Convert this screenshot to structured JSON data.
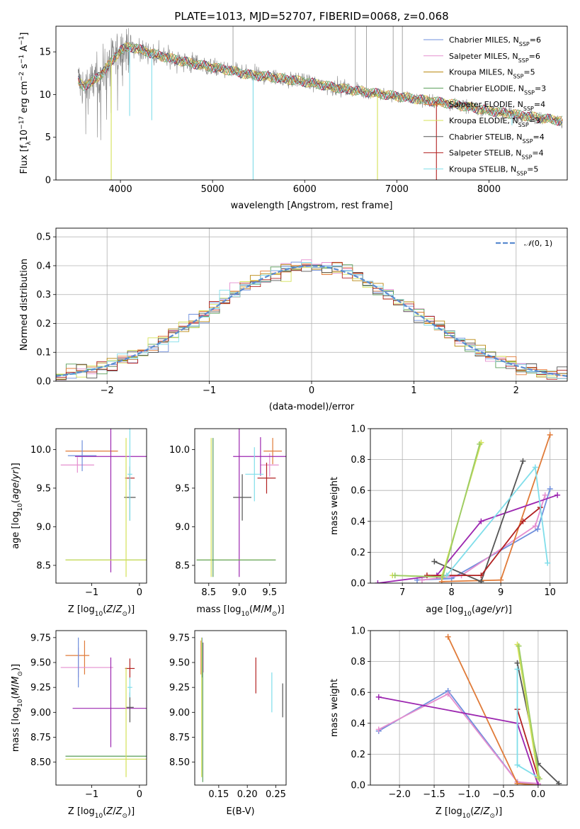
{
  "chart_data": [
    {
      "id": "spectrum",
      "type": "line",
      "title": "PLATE=1013, MJD=52707, FIBERID=0068, z=0.068",
      "xlabel": "wavelength [Angstrom, rest frame]",
      "ylabel": "Flux [fλ10⁻¹⁷ erg cm⁻² s⁻¹ A⁻¹]",
      "xlim": [
        3300,
        8850
      ],
      "ylim": [
        0,
        18
      ],
      "xticks": [
        4000,
        5000,
        6000,
        7000,
        8000
      ],
      "yticks": [
        0,
        5,
        10,
        15
      ],
      "data_color": "#808080",
      "continuum": {
        "x": [
          3540,
          3600,
          3700,
          3800,
          3900,
          4000,
          4100,
          4200,
          4400,
          4600,
          4800,
          5000,
          5200,
          5400,
          5600,
          5800,
          6000,
          6200,
          6400,
          6600,
          6800,
          7000,
          7200,
          7400,
          7600,
          7800,
          8000,
          8200,
          8400,
          8600,
          8800
        ],
        "y": [
          11.6,
          11.0,
          11.5,
          12.5,
          13.8,
          15.2,
          15.6,
          15.3,
          14.6,
          14.1,
          13.6,
          13.2,
          12.8,
          12.3,
          12.1,
          11.8,
          11.5,
          11.1,
          10.7,
          10.4,
          10.1,
          9.8,
          9.5,
          9.2,
          8.9,
          8.5,
          8.1,
          7.8,
          7.5,
          7.2,
          6.9
        ]
      },
      "legend": [
        {
          "label": "Chabrier MILES, N",
          "sub": "SSP",
          "suffix": "=6",
          "color": "#6f8fdc"
        },
        {
          "label": "Salpeter MILES, N",
          "sub": "SSP",
          "suffix": "=6",
          "color": "#e58fcf"
        },
        {
          "label": "Kroupa MILES, N",
          "sub": "SSP",
          "suffix": "=5",
          "color": "#b8860b"
        },
        {
          "label": "Chabrier ELODIE, N",
          "sub": "SSP",
          "suffix": "=3",
          "color": "#5a9e5a"
        },
        {
          "label": "Salpeter ELODIE, N",
          "sub": "SSP",
          "suffix": "=4",
          "color": "#e07b39"
        },
        {
          "label": "Kroupa ELODIE, N",
          "sub": "SSP",
          "suffix": "=3",
          "color": "#d4e157"
        },
        {
          "label": "Chabrier STELIB, N",
          "sub": "SSP",
          "suffix": "=4",
          "color": "#555555"
        },
        {
          "label": "Salpeter STELIB, N",
          "sub": "SSP",
          "suffix": "=4",
          "color": "#b22222"
        },
        {
          "label": "Kroupa STELIB, N",
          "sub": "SSP",
          "suffix": "=5",
          "color": "#80deea"
        }
      ]
    },
    {
      "id": "histogram",
      "type": "bar",
      "xlabel": "(data-model)/error",
      "ylabel": "Normed distribution",
      "xlim": [
        -2.5,
        2.5
      ],
      "ylim": [
        0,
        0.53
      ],
      "xticks": [
        -2,
        -1,
        0,
        1,
        2
      ],
      "yticks": [
        0.0,
        0.1,
        0.2,
        0.3,
        0.4,
        0.5
      ],
      "grid": true,
      "legend": "N(0,1)",
      "legend_position": "top-right",
      "gaussian_color": "#5b8bd0",
      "bin_width": 0.1,
      "series_colors": [
        "#6f8fdc",
        "#e58fcf",
        "#b8860b",
        "#5a9e5a",
        "#e07b39",
        "#d4e157",
        "#555555",
        "#b22222",
        "#80deea"
      ]
    },
    {
      "id": "age-vs-Z",
      "type": "scatter",
      "xlabel": "Z [log10(Z/Z⊙)]",
      "ylabel": "age  [log10(age/yr)]",
      "xlim": [
        -1.75,
        0.15
      ],
      "ylim": [
        8.27,
        10.27
      ],
      "xticks": [
        -1,
        0
      ],
      "yticks": [
        8.5,
        9.0,
        9.5,
        10.0
      ],
      "errorbars": [
        {
          "x": -1.0,
          "xerr": 0.55,
          "y": 9.98,
          "yerr": 0.0,
          "color": "#e07b39"
        },
        {
          "x": -1.3,
          "xerr": 0.35,
          "y": 9.8,
          "yerr": 0.1,
          "color": "#e58fcf"
        },
        {
          "x": -1.2,
          "xerr": 0.3,
          "y": 9.92,
          "yerr": 0.2,
          "color": "#6f8fdc"
        },
        {
          "x": -0.6,
          "xerr": 0.75,
          "y": 9.91,
          "yerr": 1.5,
          "color": "#9c27b0"
        },
        {
          "x": -0.2,
          "xerr": 0.1,
          "y": 9.63,
          "yerr": 0.15,
          "color": "#b22222"
        },
        {
          "x": -0.2,
          "xerr": 0.12,
          "y": 9.38,
          "yerr": 0.3,
          "color": "#555555"
        },
        {
          "x": -0.2,
          "xerr": 0.05,
          "y": 9.68,
          "yerr": 0.6,
          "color": "#80deea"
        },
        {
          "x": -0.25,
          "xerr": 1.3,
          "y": 8.57,
          "yerr": 0.0,
          "color": "#5a9e5a"
        },
        {
          "x": -0.25,
          "xerr": 1.3,
          "y": 8.57,
          "yerr": 0.0,
          "color": "#d4e157"
        },
        {
          "x": -0.28,
          "xerr": 0.0,
          "y": 9.25,
          "yerr": 0.9,
          "color": "#d4e157"
        }
      ]
    },
    {
      "id": "age-vs-mass",
      "type": "scatter",
      "xlabel": "mass [log10(M/M⊙)]",
      "ylabel": "",
      "xlim": [
        8.27,
        9.77
      ],
      "ylim": [
        8.27,
        10.27
      ],
      "xticks": [
        8.5,
        9.0,
        9.5
      ],
      "yticks": [
        8.5,
        9.0,
        9.5,
        10.0
      ],
      "errorbars": [
        {
          "x": 9.55,
          "xerr": 0.15,
          "y": 9.98,
          "yerr": 0.17,
          "color": "#e07b39"
        },
        {
          "x": 9.5,
          "xerr": 0.15,
          "y": 9.8,
          "yerr": 0.15,
          "color": "#e58fcf"
        },
        {
          "x": 9.35,
          "xerr": 0.45,
          "y": 9.91,
          "yerr": 0.25,
          "color": "#9c27b0"
        },
        {
          "x": 9.25,
          "xerr": 0.15,
          "y": 9.68,
          "yerr": 0.35,
          "color": "#80deea"
        },
        {
          "x": 9.45,
          "xerr": 0.15,
          "y": 9.63,
          "yerr": 0.2,
          "color": "#b22222"
        },
        {
          "x": 9.05,
          "xerr": 0.15,
          "y": 9.38,
          "yerr": 0.3,
          "color": "#555555"
        },
        {
          "x": 9.0,
          "xerr": 0.0,
          "y": 9.35,
          "yerr": 1.0,
          "color": "#9c27b0"
        },
        {
          "x": 8.95,
          "xerr": 0.65,
          "y": 8.57,
          "yerr": 0.0,
          "color": "#d4e157"
        },
        {
          "x": 8.95,
          "xerr": 0.65,
          "y": 8.57,
          "yerr": 0.0,
          "color": "#5a9e5a"
        },
        {
          "x": 8.57,
          "xerr": 0.0,
          "y": 9.25,
          "yerr": 0.9,
          "color": "#5a9e5a"
        },
        {
          "x": 8.54,
          "xerr": 0.0,
          "y": 9.25,
          "yerr": 0.9,
          "color": "#d4e157"
        }
      ]
    },
    {
      "id": "massweight-vs-age",
      "type": "line",
      "xlabel": "age  [log10(age/yr)]",
      "ylabel": "mass weight",
      "xlim": [
        6.35,
        10.35
      ],
      "ylim": [
        0,
        1.0
      ],
      "xticks": [
        7,
        8,
        9,
        10
      ],
      "yticks": [
        0.0,
        0.2,
        0.4,
        0.6,
        0.8,
        1.0
      ],
      "grid": true,
      "series": [
        {
          "color": "#6f8fdc",
          "x": [
            7.3,
            8.0,
            9.75,
            10.0
          ],
          "y": [
            0.02,
            0.03,
            0.35,
            0.61
          ]
        },
        {
          "color": "#e58fcf",
          "x": [
            7.4,
            8.2,
            9.7,
            9.9
          ],
          "y": [
            0.02,
            0.05,
            0.37,
            0.57
          ]
        },
        {
          "color": "#e07b39",
          "x": [
            7.8,
            9.0,
            10.0
          ],
          "y": [
            0.01,
            0.02,
            0.96
          ]
        },
        {
          "color": "#9c27b0",
          "x": [
            6.5,
            7.7,
            8.6,
            10.15
          ],
          "y": [
            0.0,
            0.05,
            0.4,
            0.57
          ]
        },
        {
          "color": "#555555",
          "x": [
            7.65,
            8.6,
            9.45
          ],
          "y": [
            0.14,
            0.01,
            0.79
          ]
        },
        {
          "color": "#b22222",
          "x": [
            7.5,
            8.6,
            9.45,
            9.8
          ],
          "y": [
            0.05,
            0.05,
            0.4,
            0.49
          ]
        },
        {
          "color": "#80deea",
          "x": [
            7.9,
            9.7,
            9.95
          ],
          "y": [
            0.05,
            0.75,
            0.13
          ]
        },
        {
          "color": "#d4e157",
          "x": [
            6.8,
            7.8,
            8.6
          ],
          "y": [
            0.05,
            0.04,
            0.91
          ]
        },
        {
          "color": "#9ccc65",
          "x": [
            6.85,
            7.82,
            8.57
          ],
          "y": [
            0.05,
            0.04,
            0.9
          ]
        }
      ]
    },
    {
      "id": "mass-vs-Z",
      "type": "scatter",
      "xlabel": "Z [log10(Z/Z⊙)]",
      "ylabel": "mass [log10(M/M⊙)]",
      "xlim": [
        -1.75,
        0.15
      ],
      "ylim": [
        8.27,
        9.82
      ],
      "xticks": [
        -1,
        0
      ],
      "yticks": [
        8.5,
        8.75,
        9.0,
        9.25,
        9.5,
        9.75
      ],
      "errorbars": [
        {
          "x": -1.3,
          "xerr": 0.25,
          "y": 9.57,
          "yerr": 0.0,
          "color": "#e07b39"
        },
        {
          "x": -1.15,
          "xerr": 0.0,
          "y": 9.55,
          "yerr": 0.17,
          "color": "#e07b39"
        },
        {
          "x": -1.28,
          "xerr": 0.0,
          "y": 9.5,
          "yerr": 0.15,
          "color": "#e58fcf"
        },
        {
          "x": -1.1,
          "xerr": 0.55,
          "y": 9.45,
          "yerr": 0.0,
          "color": "#e58fcf"
        },
        {
          "x": -1.28,
          "xerr": 0.0,
          "y": 9.5,
          "yerr": 0.25,
          "color": "#6f8fdc"
        },
        {
          "x": -0.6,
          "xerr": 0.0,
          "y": 9.1,
          "yerr": 0.45,
          "color": "#9c27b0"
        },
        {
          "x": -0.6,
          "xerr": 0.8,
          "y": 9.04,
          "yerr": 0.0,
          "color": "#9c27b0"
        },
        {
          "x": -0.2,
          "xerr": 0.1,
          "y": 9.44,
          "yerr": 0.1,
          "color": "#b22222"
        },
        {
          "x": -0.2,
          "xerr": 0.08,
          "y": 9.05,
          "yerr": 0.15,
          "color": "#555555"
        },
        {
          "x": -0.2,
          "xerr": 0.05,
          "y": 9.25,
          "yerr": 0.1,
          "color": "#80deea"
        },
        {
          "x": -0.25,
          "xerr": 1.3,
          "y": 8.56,
          "yerr": 0.0,
          "color": "#5a9e5a"
        },
        {
          "x": -0.25,
          "xerr": 1.3,
          "y": 8.53,
          "yerr": 0.0,
          "color": "#d4e157"
        },
        {
          "x": -0.28,
          "xerr": 0.0,
          "y": 8.9,
          "yerr": 0.55,
          "color": "#d4e157"
        }
      ]
    },
    {
      "id": "mass-vs-ebv",
      "type": "scatter",
      "xlabel": "E(B-V)",
      "ylabel": "",
      "xlim": [
        0.108,
        0.268
      ],
      "ylim": [
        8.27,
        9.82
      ],
      "xticks": [
        0.15,
        0.2,
        0.25
      ],
      "yticks": [
        8.5,
        8.75,
        9.0,
        9.25,
        9.5,
        9.75
      ],
      "errorbars": [
        {
          "x": 0.121,
          "xerr": 0.0,
          "y": 9.55,
          "yerr": 0.2,
          "color": "#6f8fdc"
        },
        {
          "x": 0.123,
          "xerr": 0.0,
          "y": 9.55,
          "yerr": 0.15,
          "color": "#e58fcf"
        },
        {
          "x": 0.119,
          "xerr": 0.0,
          "y": 9.55,
          "yerr": 0.17,
          "color": "#e07b39"
        },
        {
          "x": 0.122,
          "xerr": 0.0,
          "y": 9.0,
          "yerr": 0.7,
          "color": "#5a9e5a"
        },
        {
          "x": 0.12,
          "xerr": 0.0,
          "y": 9.05,
          "yerr": 0.7,
          "color": "#d4e157"
        },
        {
          "x": 0.215,
          "xerr": 0.0,
          "y": 9.37,
          "yerr": 0.18,
          "color": "#b22222"
        },
        {
          "x": 0.243,
          "xerr": 0.0,
          "y": 9.2,
          "yerr": 0.2,
          "color": "#80deea"
        },
        {
          "x": 0.262,
          "xerr": 0.0,
          "y": 9.12,
          "yerr": 0.17,
          "color": "#555555"
        }
      ]
    },
    {
      "id": "massweight-vs-Z",
      "type": "line",
      "xlabel": "Z [log10(Z/Z⊙)]",
      "ylabel": "mass weight",
      "xlim": [
        -2.42,
        0.42
      ],
      "ylim": [
        0,
        1.0
      ],
      "xticks": [
        -2.0,
        -1.5,
        -1.0,
        -0.5,
        0.0
      ],
      "yticks": [
        0.0,
        0.2,
        0.4,
        0.6,
        0.8,
        1.0
      ],
      "grid": true,
      "series": [
        {
          "color": "#6f8fdc",
          "x": [
            -2.3,
            -1.3,
            -0.3,
            0.0
          ],
          "y": [
            0.35,
            0.61,
            0.02,
            0.0
          ]
        },
        {
          "color": "#e58fcf",
          "x": [
            -2.3,
            -1.3,
            -0.3,
            0.0
          ],
          "y": [
            0.36,
            0.59,
            0.02,
            0.01
          ]
        },
        {
          "color": "#e07b39",
          "x": [
            -1.3,
            -0.3,
            0.0
          ],
          "y": [
            0.96,
            0.01,
            0.0
          ]
        },
        {
          "color": "#9c27b0",
          "x": [
            -2.3,
            -0.3,
            0.0
          ],
          "y": [
            0.57,
            0.4,
            0.0
          ]
        },
        {
          "color": "#555555",
          "x": [
            -0.3,
            0.0,
            0.3
          ],
          "y": [
            0.79,
            0.14,
            0.01
          ]
        },
        {
          "color": "#b22222",
          "x": [
            -0.3,
            0.0
          ],
          "y": [
            0.49,
            0.05
          ]
        },
        {
          "color": "#80deea",
          "x": [
            -0.3,
            -0.3,
            0.0
          ],
          "y": [
            0.75,
            0.13,
            0.05
          ]
        },
        {
          "color": "#d4e157",
          "x": [
            -0.3,
            0.0
          ],
          "y": [
            0.91,
            0.05
          ]
        },
        {
          "color": "#9ccc65",
          "x": [
            -0.28,
            0.02
          ],
          "y": [
            0.9,
            0.04
          ]
        }
      ]
    }
  ]
}
